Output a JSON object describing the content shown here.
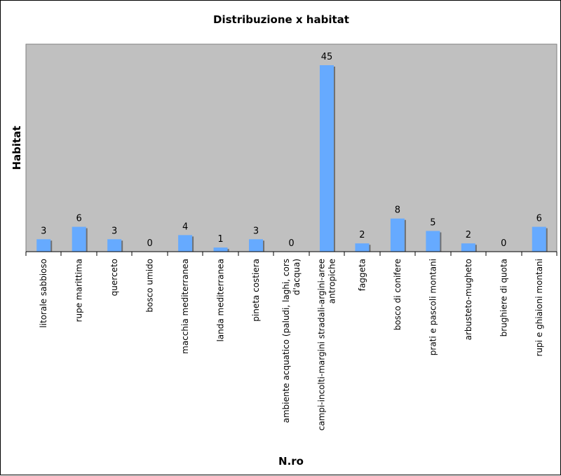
{
  "chart_data": {
    "type": "bar",
    "title": "Distribuzione x habitat",
    "xlabel": "N.ro",
    "ylabel": "Habitat",
    "ylim": [
      0,
      50
    ],
    "grid": false,
    "legend": "none",
    "colors": {
      "plot_bg": "#c0c0c0",
      "bar": "#66aaff",
      "bar_shadow": "#707070"
    },
    "categories": [
      "litorale sabbioso",
      "rupe marittima",
      "querceto",
      "bosco umido",
      "macchia mediterranea",
      "landa mediterranea",
      "pineta costiera",
      "ambiente acquatico (paludi, laghi, cors d'acqua)",
      "campi-incolti-margini stradali-argini-aree antropiche",
      "faggeta",
      "bosco di conifere",
      "prati e pascoli montani",
      "arbusteto-mugheto",
      "brughiere di quota",
      "rupi e ghiaioni montani"
    ],
    "category_lines": [
      [
        "litorale sabbioso"
      ],
      [
        "rupe marittima"
      ],
      [
        "querceto"
      ],
      [
        "bosco umido"
      ],
      [
        "macchia mediterranea"
      ],
      [
        "landa mediterranea"
      ],
      [
        "pineta costiera"
      ],
      [
        "ambiente acquatico (paludi, laghi, cors",
        "d'acqua)"
      ],
      [
        "campi-incolti-margini stradali-argini-aree",
        "antropiche"
      ],
      [
        "faggeta"
      ],
      [
        "bosco di conifere"
      ],
      [
        "prati e pascoli montani"
      ],
      [
        "arbusteto-mugheto"
      ],
      [
        "brughiere di quota"
      ],
      [
        "rupi e ghiaioni montani"
      ]
    ],
    "values": [
      3,
      6,
      3,
      0,
      4,
      1,
      3,
      0,
      45,
      2,
      8,
      5,
      2,
      0,
      6
    ]
  }
}
